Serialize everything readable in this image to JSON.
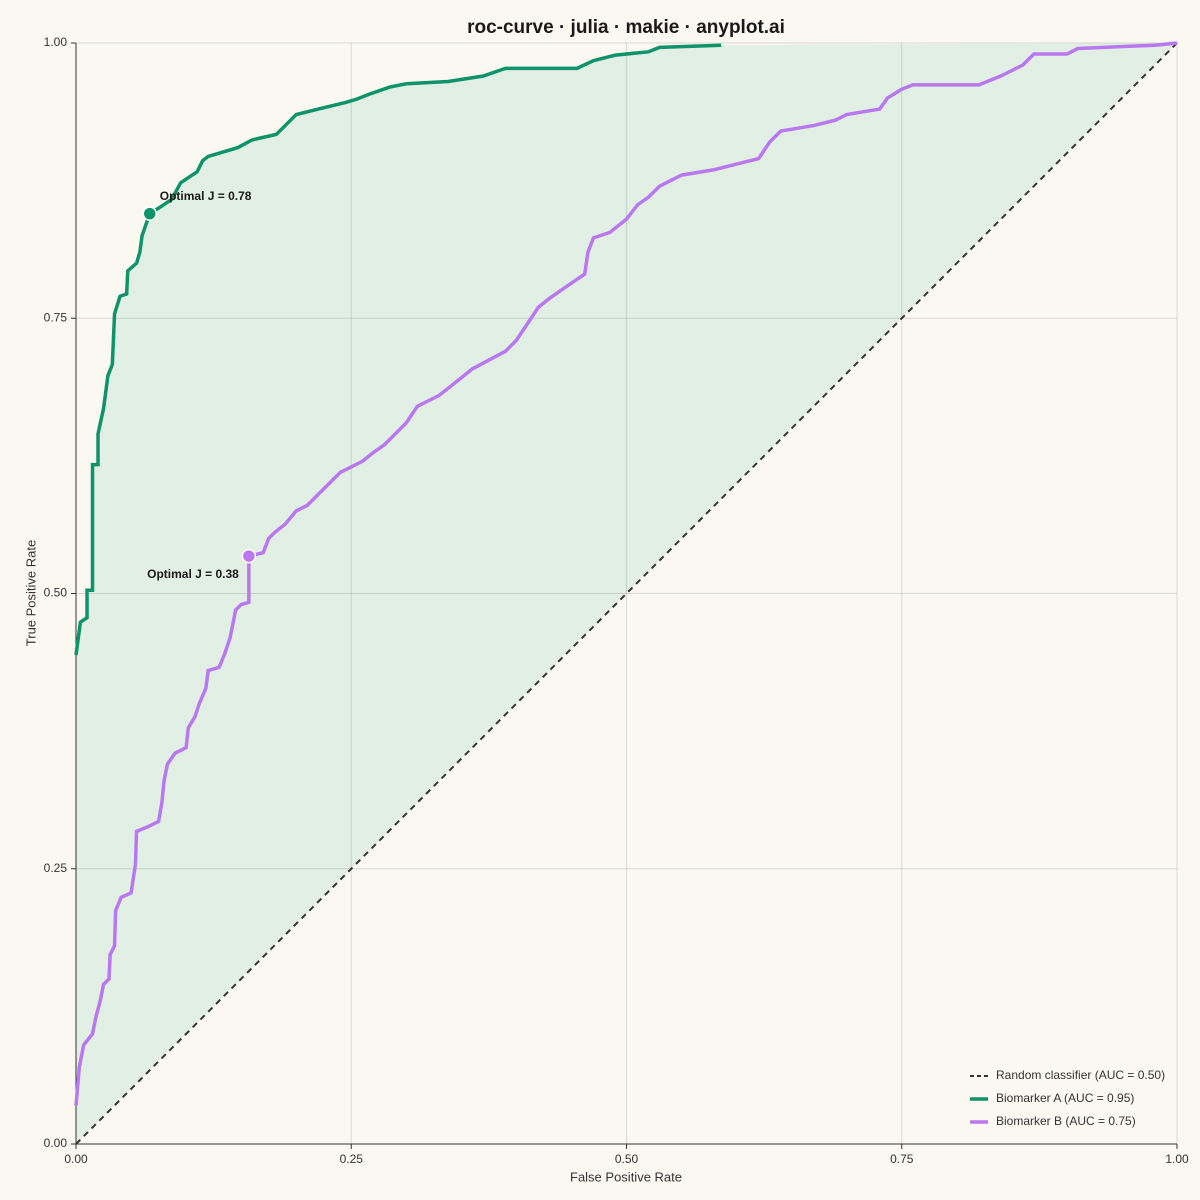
{
  "chart_data": {
    "type": "line",
    "title": "roc-curve · julia · makie · anyplot.ai",
    "x_label": "False Positive Rate",
    "y_label": "True Positive Rate",
    "xlim": [
      0,
      1
    ],
    "ylim": [
      0,
      1
    ],
    "xticks": [
      {
        "value": 0,
        "label": "0.00"
      },
      {
        "value": 0.25,
        "label": "0.25"
      },
      {
        "value": 0.5,
        "label": "0.50"
      },
      {
        "value": 0.75,
        "label": "0.75"
      },
      {
        "value": 1,
        "label": "1.00"
      }
    ],
    "yticks": [
      {
        "value": 0,
        "label": "0.00"
      },
      {
        "value": 0.25,
        "label": "0.25"
      },
      {
        "value": 0.5,
        "label": "0.50"
      },
      {
        "value": 0.75,
        "label": "0.75"
      },
      {
        "value": 1,
        "label": "1.00"
      }
    ],
    "grid": true,
    "legend": "lower right",
    "fill_color": "#e2efe4",
    "series": [
      {
        "name": "Random classifier (AUC = 0.50)",
        "color": "#333333",
        "dashed": true,
        "x": [
          0,
          1
        ],
        "values": [
          0,
          1
        ]
      },
      {
        "name": "Biomarker A (AUC = 0.95)",
        "color": "#0e936b",
        "fill": true,
        "x": [
          0,
          0.004,
          0.01,
          0.01,
          0.015,
          0.015,
          0.02,
          0.02,
          0.025,
          0.029,
          0.033,
          0.035,
          0.04,
          0.046,
          0.047,
          0.055,
          0.058,
          0.06,
          0.067,
          0.075,
          0.087,
          0.095,
          0.11,
          0.115,
          0.12,
          0.147,
          0.16,
          0.182,
          0.19,
          0.2,
          0.22,
          0.245,
          0.255,
          0.265,
          0.285,
          0.3,
          0.338,
          0.37,
          0.39,
          0.455,
          0.47,
          0.49,
          0.52,
          0.53,
          0.586
        ],
        "values": [
          0.444,
          0.474,
          0.478,
          0.503,
          0.503,
          0.617,
          0.617,
          0.645,
          0.668,
          0.698,
          0.708,
          0.754,
          0.77,
          0.772,
          0.793,
          0.8,
          0.81,
          0.825,
          0.845,
          0.85,
          0.858,
          0.873,
          0.883,
          0.893,
          0.897,
          0.905,
          0.912,
          0.917,
          0.925,
          0.935,
          0.94,
          0.946,
          0.949,
          0.953,
          0.96,
          0.963,
          0.965,
          0.97,
          0.977,
          0.977,
          0.984,
          0.989,
          0.992,
          0.996,
          0.998
        ]
      },
      {
        "name": "Biomarker B (AUC = 0.75)",
        "color": "#b978f0",
        "x": [
          0,
          0.003,
          0.007,
          0.015,
          0.018,
          0.022,
          0.025,
          0.03,
          0.031,
          0.035,
          0.036,
          0.041,
          0.05,
          0.054,
          0.055,
          0.065,
          0.075,
          0.078,
          0.08,
          0.083,
          0.09,
          0.1,
          0.102,
          0.108,
          0.112,
          0.118,
          0.12,
          0.13,
          0.135,
          0.14,
          0.145,
          0.15,
          0.157,
          0.157,
          0.17,
          0.175,
          0.18,
          0.19,
          0.2,
          0.21,
          0.22,
          0.23,
          0.24,
          0.26,
          0.27,
          0.28,
          0.29,
          0.3,
          0.31,
          0.33,
          0.34,
          0.35,
          0.36,
          0.375,
          0.39,
          0.4,
          0.41,
          0.42,
          0.43,
          0.44,
          0.45,
          0.462,
          0.465,
          0.47,
          0.485,
          0.5,
          0.51,
          0.52,
          0.53,
          0.55,
          0.58,
          0.6,
          0.62,
          0.63,
          0.64,
          0.67,
          0.69,
          0.7,
          0.73,
          0.737,
          0.75,
          0.76,
          0.82,
          0.84,
          0.86,
          0.87,
          0.9,
          0.91,
          0.98,
          1
        ],
        "values": [
          0.035,
          0.07,
          0.09,
          0.1,
          0.115,
          0.13,
          0.145,
          0.15,
          0.172,
          0.18,
          0.212,
          0.224,
          0.228,
          0.254,
          0.284,
          0.288,
          0.293,
          0.31,
          0.33,
          0.345,
          0.355,
          0.36,
          0.378,
          0.388,
          0.4,
          0.414,
          0.43,
          0.433,
          0.445,
          0.46,
          0.485,
          0.49,
          0.492,
          0.534,
          0.537,
          0.55,
          0.555,
          0.563,
          0.575,
          0.58,
          0.59,
          0.6,
          0.61,
          0.62,
          0.628,
          0.635,
          0.645,
          0.655,
          0.67,
          0.68,
          0.688,
          0.696,
          0.704,
          0.712,
          0.72,
          0.73,
          0.745,
          0.76,
          0.768,
          0.775,
          0.782,
          0.79,
          0.81,
          0.823,
          0.828,
          0.84,
          0.853,
          0.86,
          0.87,
          0.88,
          0.885,
          0.89,
          0.895,
          0.91,
          0.92,
          0.925,
          0.93,
          0.935,
          0.94,
          0.95,
          0.958,
          0.962,
          0.962,
          0.97,
          0.98,
          0.99,
          0.99,
          0.995,
          0.998,
          1
        ]
      }
    ],
    "annotations": [
      {
        "text": "Optimal J = 0.78",
        "x": 0.067,
        "y": 0.845,
        "color": "#0e936b"
      },
      {
        "text": "Optimal J = 0.38",
        "x": 0.157,
        "y": 0.534,
        "color": "#b978f0"
      }
    ]
  }
}
